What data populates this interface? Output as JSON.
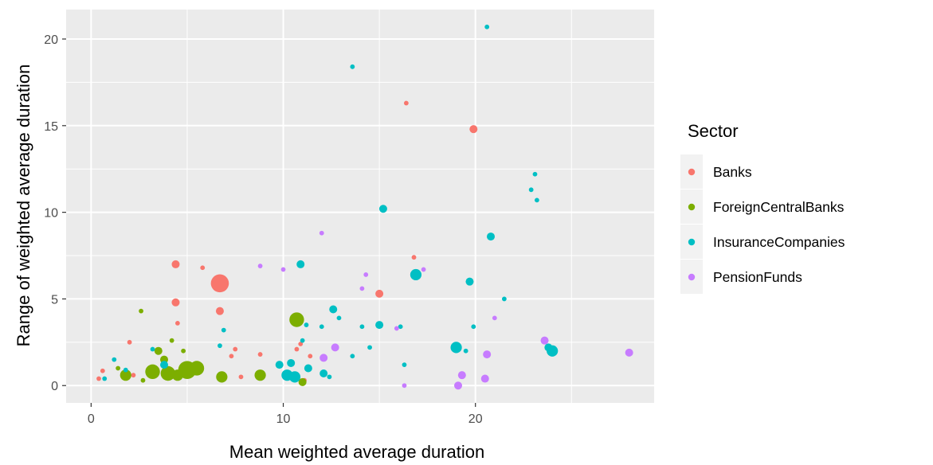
{
  "chart_data": {
    "type": "scatter",
    "xlabel": "Mean weighted average duration",
    "ylabel": "Range of weighted average duration",
    "xlim": [
      -1.3,
      29.3
    ],
    "ylim": [
      -1.0,
      21.7
    ],
    "x_ticks": [
      0,
      10,
      20
    ],
    "y_ticks": [
      0,
      5,
      10,
      15,
      20
    ],
    "grid": true,
    "legend": {
      "title": "Sector",
      "position": "right"
    },
    "background": "#ebebeb",
    "series": [
      {
        "name": "Banks",
        "color": "#f8766d",
        "points": [
          {
            "x": 0.4,
            "y": 0.4,
            "s": 1
          },
          {
            "x": 0.6,
            "y": 0.85,
            "s": 1
          },
          {
            "x": 2.0,
            "y": 2.5,
            "s": 1
          },
          {
            "x": 2.2,
            "y": 0.6,
            "s": 1
          },
          {
            "x": 4.4,
            "y": 7.0,
            "s": 2
          },
          {
            "x": 4.4,
            "y": 4.8,
            "s": 2
          },
          {
            "x": 4.5,
            "y": 3.6,
            "s": 1
          },
          {
            "x": 5.6,
            "y": 1.2,
            "s": 1
          },
          {
            "x": 5.8,
            "y": 6.8,
            "s": 1
          },
          {
            "x": 6.7,
            "y": 5.9,
            "s": 5
          },
          {
            "x": 6.7,
            "y": 4.3,
            "s": 2
          },
          {
            "x": 7.3,
            "y": 1.7,
            "s": 1
          },
          {
            "x": 7.5,
            "y": 2.1,
            "s": 1
          },
          {
            "x": 7.8,
            "y": 0.5,
            "s": 1
          },
          {
            "x": 8.8,
            "y": 1.8,
            "s": 1
          },
          {
            "x": 10.7,
            "y": 2.1,
            "s": 1
          },
          {
            "x": 10.9,
            "y": 2.4,
            "s": 1
          },
          {
            "x": 11.1,
            "y": 0.3,
            "s": 1
          },
          {
            "x": 11.4,
            "y": 1.7,
            "s": 1
          },
          {
            "x": 15.0,
            "y": 5.3,
            "s": 2
          },
          {
            "x": 16.4,
            "y": 16.3,
            "s": 1
          },
          {
            "x": 16.8,
            "y": 7.4,
            "s": 1
          },
          {
            "x": 19.9,
            "y": 14.8,
            "s": 2
          }
        ]
      },
      {
        "name": "ForeignCentralBanks",
        "color": "#7cae00",
        "points": [
          {
            "x": 1.4,
            "y": 1.0,
            "s": 1
          },
          {
            "x": 1.8,
            "y": 0.6,
            "s": 3
          },
          {
            "x": 2.6,
            "y": 4.3,
            "s": 1
          },
          {
            "x": 2.7,
            "y": 0.3,
            "s": 1
          },
          {
            "x": 3.2,
            "y": 0.8,
            "s": 4
          },
          {
            "x": 3.5,
            "y": 2.0,
            "s": 2
          },
          {
            "x": 3.8,
            "y": 1.5,
            "s": 2
          },
          {
            "x": 4.0,
            "y": 0.7,
            "s": 4
          },
          {
            "x": 4.2,
            "y": 2.6,
            "s": 1
          },
          {
            "x": 4.5,
            "y": 0.6,
            "s": 3
          },
          {
            "x": 4.8,
            "y": 2.0,
            "s": 1
          },
          {
            "x": 5.0,
            "y": 0.9,
            "s": 5
          },
          {
            "x": 5.5,
            "y": 1.0,
            "s": 4
          },
          {
            "x": 6.8,
            "y": 0.5,
            "s": 3
          },
          {
            "x": 8.8,
            "y": 0.6,
            "s": 3
          },
          {
            "x": 10.7,
            "y": 3.8,
            "s": 4
          },
          {
            "x": 11.0,
            "y": 0.2,
            "s": 2
          }
        ]
      },
      {
        "name": "InsuranceCompanies",
        "color": "#00bfc4",
        "points": [
          {
            "x": 0.7,
            "y": 0.4,
            "s": 1
          },
          {
            "x": 1.2,
            "y": 1.5,
            "s": 1
          },
          {
            "x": 1.8,
            "y": 0.9,
            "s": 1
          },
          {
            "x": 3.2,
            "y": 2.1,
            "s": 1
          },
          {
            "x": 3.8,
            "y": 1.2,
            "s": 2
          },
          {
            "x": 6.7,
            "y": 2.3,
            "s": 1
          },
          {
            "x": 6.9,
            "y": 3.2,
            "s": 1
          },
          {
            "x": 9.8,
            "y": 1.2,
            "s": 2
          },
          {
            "x": 10.2,
            "y": 0.6,
            "s": 3
          },
          {
            "x": 10.4,
            "y": 1.3,
            "s": 2
          },
          {
            "x": 10.6,
            "y": 0.5,
            "s": 3
          },
          {
            "x": 10.9,
            "y": 7.0,
            "s": 2
          },
          {
            "x": 11.0,
            "y": 2.6,
            "s": 1
          },
          {
            "x": 11.2,
            "y": 3.5,
            "s": 1
          },
          {
            "x": 11.3,
            "y": 1.0,
            "s": 2
          },
          {
            "x": 12.0,
            "y": 3.4,
            "s": 1
          },
          {
            "x": 12.1,
            "y": 0.7,
            "s": 2
          },
          {
            "x": 12.4,
            "y": 0.5,
            "s": 1
          },
          {
            "x": 12.6,
            "y": 4.4,
            "s": 2
          },
          {
            "x": 12.9,
            "y": 3.9,
            "s": 1
          },
          {
            "x": 13.6,
            "y": 18.4,
            "s": 1
          },
          {
            "x": 13.6,
            "y": 1.7,
            "s": 1
          },
          {
            "x": 14.1,
            "y": 3.4,
            "s": 1
          },
          {
            "x": 14.5,
            "y": 2.2,
            "s": 1
          },
          {
            "x": 15.0,
            "y": 3.5,
            "s": 2
          },
          {
            "x": 15.2,
            "y": 10.2,
            "s": 2
          },
          {
            "x": 16.1,
            "y": 3.4,
            "s": 1
          },
          {
            "x": 16.3,
            "y": 1.2,
            "s": 1
          },
          {
            "x": 16.9,
            "y": 6.4,
            "s": 3
          },
          {
            "x": 19.0,
            "y": 2.2,
            "s": 3
          },
          {
            "x": 19.5,
            "y": 2.0,
            "s": 1
          },
          {
            "x": 19.7,
            "y": 6.0,
            "s": 2
          },
          {
            "x": 19.9,
            "y": 3.4,
            "s": 1
          },
          {
            "x": 20.6,
            "y": 20.7,
            "s": 1
          },
          {
            "x": 20.8,
            "y": 8.6,
            "s": 2
          },
          {
            "x": 21.5,
            "y": 5.0,
            "s": 1
          },
          {
            "x": 22.9,
            "y": 11.3,
            "s": 1
          },
          {
            "x": 23.1,
            "y": 12.2,
            "s": 1
          },
          {
            "x": 23.2,
            "y": 10.7,
            "s": 1
          },
          {
            "x": 23.8,
            "y": 2.2,
            "s": 2
          },
          {
            "x": 24.0,
            "y": 2.0,
            "s": 3
          }
        ]
      },
      {
        "name": "PensionFunds",
        "color": "#c77cff",
        "points": [
          {
            "x": 8.8,
            "y": 6.9,
            "s": 1
          },
          {
            "x": 10.0,
            "y": 6.7,
            "s": 1
          },
          {
            "x": 12.0,
            "y": 8.8,
            "s": 1
          },
          {
            "x": 12.1,
            "y": 1.6,
            "s": 2
          },
          {
            "x": 12.7,
            "y": 2.2,
            "s": 2
          },
          {
            "x": 14.1,
            "y": 5.6,
            "s": 1
          },
          {
            "x": 14.3,
            "y": 6.4,
            "s": 1
          },
          {
            "x": 15.9,
            "y": 3.3,
            "s": 1
          },
          {
            "x": 16.3,
            "y": 0.0,
            "s": 1
          },
          {
            "x": 17.3,
            "y": 6.7,
            "s": 1
          },
          {
            "x": 19.1,
            "y": 0.0,
            "s": 2
          },
          {
            "x": 19.3,
            "y": 0.6,
            "s": 2
          },
          {
            "x": 20.5,
            "y": 0.4,
            "s": 2
          },
          {
            "x": 20.6,
            "y": 1.8,
            "s": 2
          },
          {
            "x": 21.0,
            "y": 3.9,
            "s": 1
          },
          {
            "x": 23.6,
            "y": 2.6,
            "s": 2
          },
          {
            "x": 28.0,
            "y": 1.9,
            "s": 2
          }
        ]
      }
    ]
  }
}
